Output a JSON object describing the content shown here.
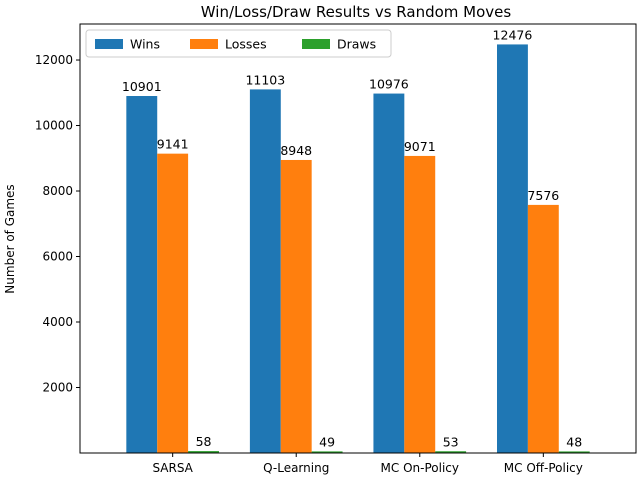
{
  "chart_data": {
    "type": "bar",
    "title": "Win/Loss/Draw Results vs Random Moves",
    "xlabel": "",
    "ylabel": "Number of Games",
    "categories": [
      "SARSA",
      "Q-Learning",
      "MC On-Policy",
      "MC Off-Policy"
    ],
    "series": [
      {
        "name": "Wins",
        "values": [
          10901,
          11103,
          10976,
          12476
        ],
        "color": "#1f77b4"
      },
      {
        "name": "Losses",
        "values": [
          9141,
          8948,
          9071,
          7576
        ],
        "color": "#ff7f0e"
      },
      {
        "name": "Draws",
        "values": [
          58,
          49,
          53,
          48
        ],
        "color": "#2ca02c"
      }
    ],
    "yticks": [
      2000,
      4000,
      6000,
      8000,
      10000,
      12000
    ],
    "ylim": [
      0,
      13100
    ],
    "legend": "top-left",
    "grid": false
  }
}
